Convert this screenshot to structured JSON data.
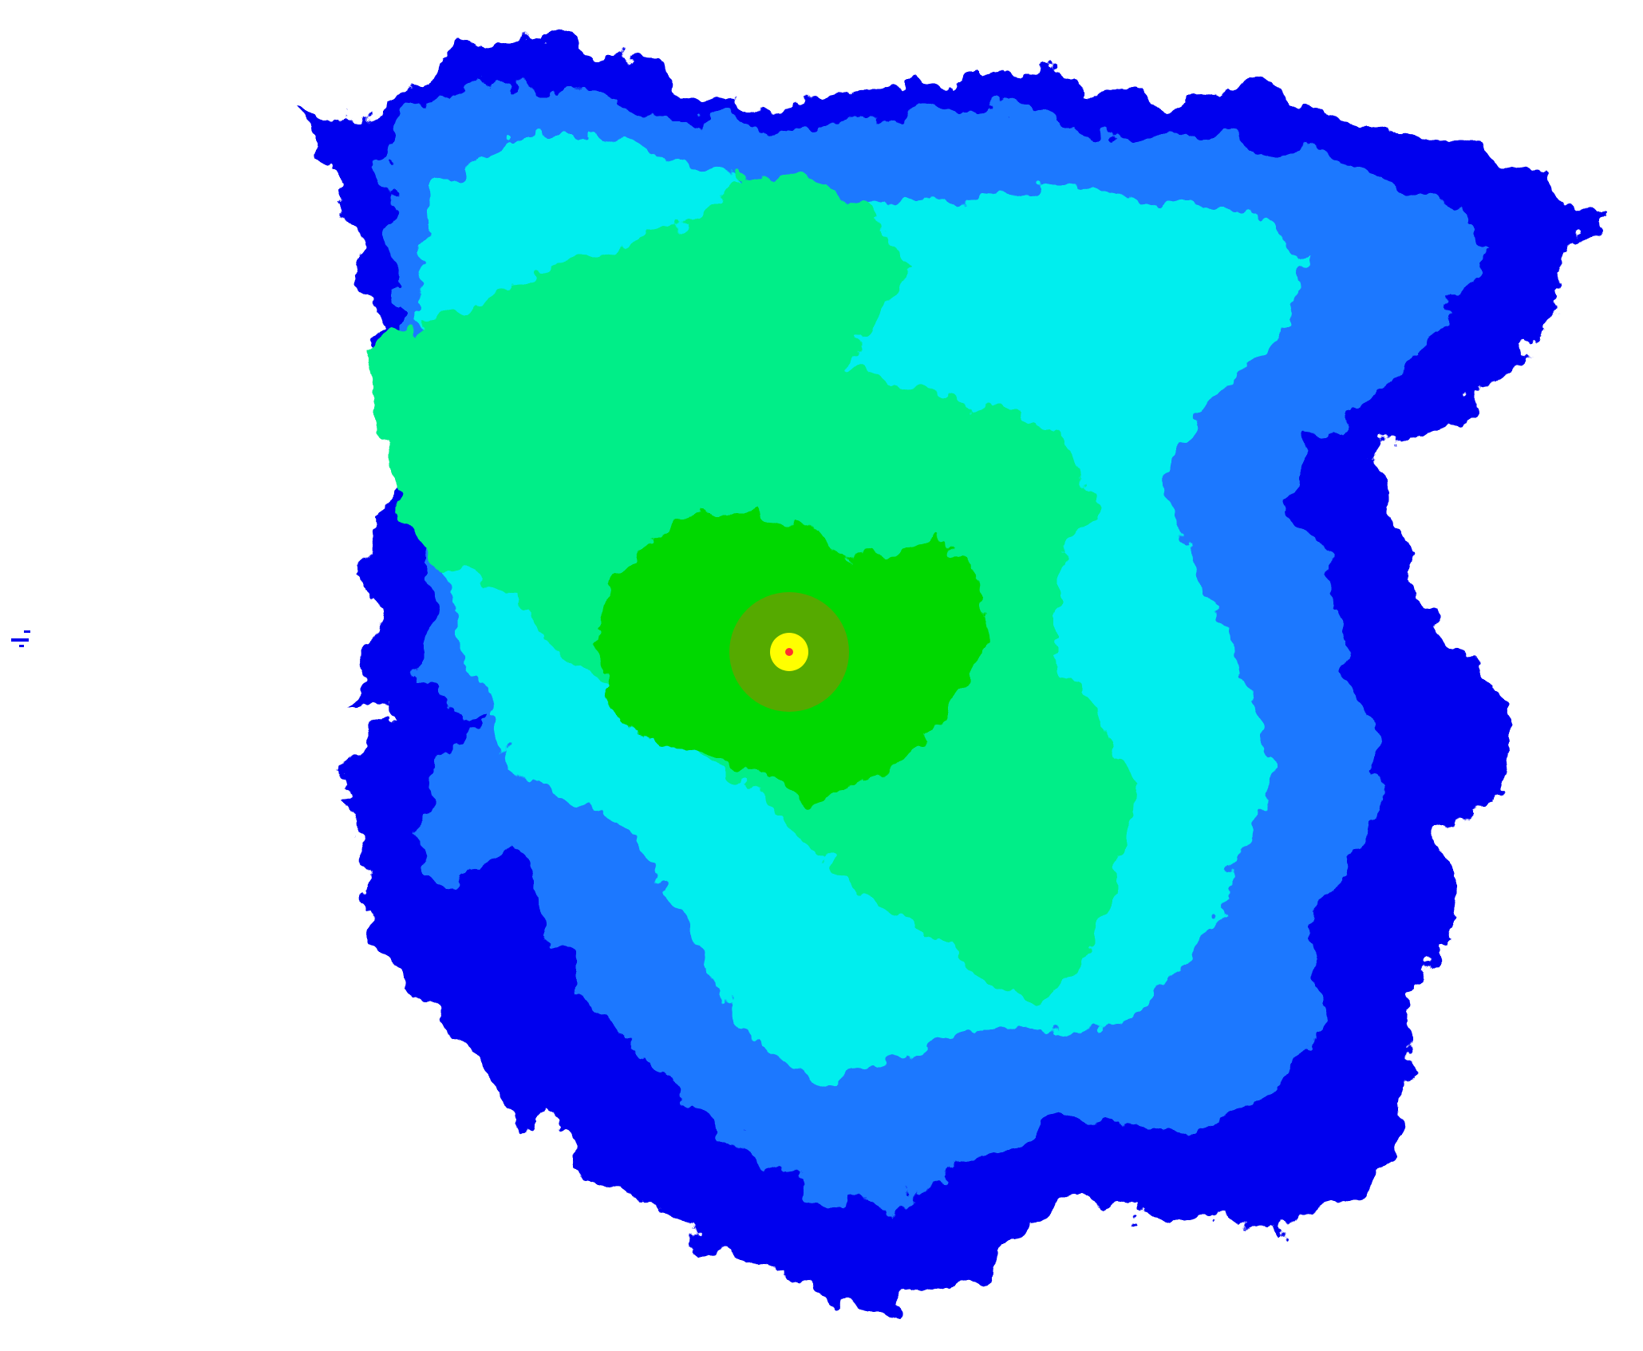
{
  "map": {
    "type": "radio-coverage-heatmap",
    "background": "#ffffff",
    "has_text": false,
    "signal_bands": [
      {
        "name": "very-weak",
        "color": "#0000ee"
      },
      {
        "name": "weak",
        "color": "#1e78ff"
      },
      {
        "name": "fair",
        "color": "#00eeee"
      },
      {
        "name": "moderate",
        "color": "#00ee88"
      },
      {
        "name": "good",
        "color": "#00d800"
      },
      {
        "name": "strong",
        "color": "#55aa00"
      },
      {
        "name": "very-strong",
        "color": "#ffff00"
      },
      {
        "name": "transmitter",
        "color": "#ff3030"
      }
    ]
  }
}
